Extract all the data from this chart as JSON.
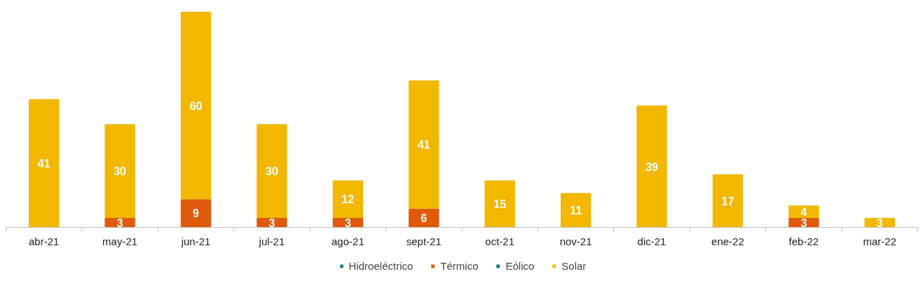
{
  "chart_data": {
    "type": "bar",
    "stacked": true,
    "data_labels": true,
    "legend": "bottom",
    "grid": false,
    "categories": [
      "abr-21",
      "may-21",
      "jun-21",
      "jul-21",
      "ago-21",
      "sept-21",
      "oct-21",
      "nov-21",
      "dic-21",
      "ene-22",
      "feb-22",
      "mar-22"
    ],
    "series": [
      {
        "name": "Hidroeléctrico",
        "color": "#1b7f86",
        "values": [
          null,
          null,
          null,
          null,
          null,
          null,
          null,
          null,
          null,
          null,
          null,
          null
        ]
      },
      {
        "name": "Térmico",
        "color": "#e05a0c",
        "values": [
          null,
          3,
          9,
          3,
          3,
          6,
          null,
          null,
          null,
          null,
          3,
          null
        ]
      },
      {
        "name": "Eólico",
        "color": "#0f7a82",
        "values": [
          null,
          null,
          null,
          null,
          null,
          null,
          null,
          null,
          null,
          null,
          null,
          null
        ]
      },
      {
        "name": "Solar",
        "color": "#f2b800",
        "values": [
          41,
          30,
          60,
          30,
          12,
          41,
          15,
          11,
          39,
          17,
          4,
          3
        ]
      }
    ]
  }
}
